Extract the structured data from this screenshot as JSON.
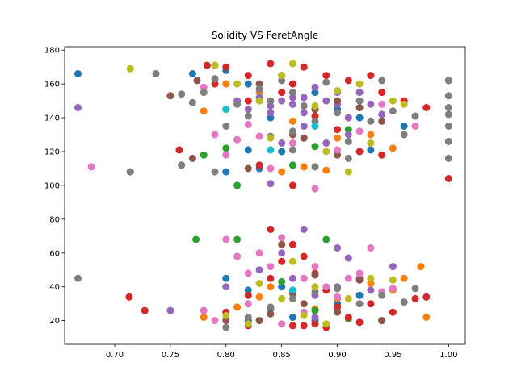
{
  "chart_data": {
    "type": "scatter",
    "title": "Solidity VS FeretAngle",
    "xlabel": "",
    "ylabel": "",
    "xlim": [
      0.655,
      1.015
    ],
    "ylim": [
      6,
      182
    ],
    "xticks": [
      0.7,
      0.75,
      0.8,
      0.85,
      0.9,
      0.95,
      1.0
    ],
    "xtick_labels": [
      "0.70",
      "0.75",
      "0.80",
      "0.85",
      "0.90",
      "0.95",
      "1.00"
    ],
    "yticks": [
      20,
      40,
      60,
      80,
      100,
      120,
      140,
      160,
      180
    ],
    "ytick_labels": [
      "20",
      "40",
      "60",
      "80",
      "100",
      "120",
      "140",
      "160",
      "180"
    ],
    "grid": false,
    "legend": "none",
    "colors": [
      "#1f77b4",
      "#ff7f0e",
      "#2ca02c",
      "#d62728",
      "#9467bd",
      "#8c564b",
      "#e377c2",
      "#7f7f7f",
      "#bcbd22",
      "#17becf"
    ],
    "series": [
      {
        "color": "#1f77b4",
        "points": [
          [
            0.667,
            166
          ],
          [
            0.77,
            166
          ],
          [
            0.79,
            171
          ],
          [
            0.8,
            168
          ],
          [
            0.82,
            160
          ],
          [
            0.83,
            150
          ],
          [
            0.84,
            140
          ],
          [
            0.86,
            148
          ],
          [
            0.88,
            155
          ],
          [
            0.9,
            145
          ],
          [
            0.92,
            140
          ],
          [
            0.96,
            135
          ],
          [
            0.82,
            121
          ],
          [
            0.85,
            120
          ],
          [
            0.93,
            121
          ],
          [
            0.8,
            108
          ],
          [
            0.83,
            110
          ],
          [
            0.8,
            45
          ],
          [
            0.82,
            38
          ],
          [
            0.84,
            27
          ],
          [
            0.86,
            22
          ],
          [
            0.88,
            20
          ],
          [
            0.9,
            30
          ],
          [
            0.92,
            35
          ],
          [
            0.94,
            20
          ],
          [
            0.82,
            20
          ],
          [
            0.85,
            40
          ]
        ]
      },
      {
        "color": "#ff7f0e",
        "points": [
          [
            0.78,
            144
          ],
          [
            0.8,
            160
          ],
          [
            0.83,
            155
          ],
          [
            0.86,
            138
          ],
          [
            0.9,
            128
          ],
          [
            0.93,
            130
          ],
          [
            0.95,
            122
          ],
          [
            0.85,
            108
          ],
          [
            0.87,
            111
          ],
          [
            0.89,
            109
          ],
          [
            0.78,
            22
          ],
          [
            0.81,
            28
          ],
          [
            0.84,
            40
          ],
          [
            0.87,
            45
          ],
          [
            0.9,
            33
          ],
          [
            0.93,
            42
          ],
          [
            0.96,
            45
          ],
          [
            0.975,
            52
          ],
          [
            0.83,
            34
          ],
          [
            0.88,
            27
          ],
          [
            0.95,
            38
          ],
          [
            0.98,
            22
          ]
        ]
      },
      {
        "color": "#2ca02c",
        "points": [
          [
            0.78,
            118
          ],
          [
            0.8,
            122
          ],
          [
            0.81,
            100
          ],
          [
            0.86,
            112
          ],
          [
            0.88,
            123
          ],
          [
            0.91,
            133
          ],
          [
            0.773,
            68
          ],
          [
            0.81,
            68
          ],
          [
            0.89,
            68
          ],
          [
            0.85,
            43
          ],
          [
            0.88,
            26
          ],
          [
            0.91,
            21
          ]
        ]
      },
      {
        "color": "#d62728",
        "points": [
          [
            0.783,
            171
          ],
          [
            0.79,
            160
          ],
          [
            0.8,
            170
          ],
          [
            0.82,
            165
          ],
          [
            0.84,
            172
          ],
          [
            0.86,
            160
          ],
          [
            0.87,
            170
          ],
          [
            0.89,
            165
          ],
          [
            0.91,
            162
          ],
          [
            0.93,
            165
          ],
          [
            0.94,
            155
          ],
          [
            0.96,
            150
          ],
          [
            0.98,
            146
          ],
          [
            0.82,
            150
          ],
          [
            0.85,
            155
          ],
          [
            0.87,
            128
          ],
          [
            0.88,
            141
          ],
          [
            0.9,
            133
          ],
          [
            0.92,
            120
          ],
          [
            0.94,
            118
          ],
          [
            0.758,
            121
          ],
          [
            0.76,
            112
          ],
          [
            0.83,
            112
          ],
          [
            0.86,
            100
          ],
          [
            0.8,
            25
          ],
          [
            0.82,
            35
          ],
          [
            0.84,
            45
          ],
          [
            0.85,
            55
          ],
          [
            0.86,
            65
          ],
          [
            0.87,
            58
          ],
          [
            0.88,
            48
          ],
          [
            0.89,
            38
          ],
          [
            0.9,
            28
          ],
          [
            0.91,
            22
          ],
          [
            0.92,
            19
          ],
          [
            0.93,
            30
          ],
          [
            0.95,
            25
          ],
          [
            0.97,
            33
          ],
          [
            0.98,
            34
          ],
          [
            0.713,
            34
          ],
          [
            0.727,
            26
          ],
          [
            1.0,
            104
          ],
          [
            1.0,
            162
          ],
          [
            0.84,
            74
          ],
          [
            0.82,
            17
          ],
          [
            0.86,
            17
          ],
          [
            0.87,
            17
          ],
          [
            0.88,
            18
          ],
          [
            0.89,
            16
          ]
        ]
      },
      {
        "color": "#9467bd",
        "points": [
          [
            0.667,
            146
          ],
          [
            0.79,
            163
          ],
          [
            0.81,
            150
          ],
          [
            0.82,
            145
          ],
          [
            0.83,
            152
          ],
          [
            0.84,
            147
          ],
          [
            0.85,
            150
          ],
          [
            0.86,
            148
          ],
          [
            0.87,
            152
          ],
          [
            0.88,
            145
          ],
          [
            0.89,
            150
          ],
          [
            0.9,
            148
          ],
          [
            0.91,
            140
          ],
          [
            0.92,
            155
          ],
          [
            0.93,
            148
          ],
          [
            0.94,
            142
          ],
          [
            0.85,
            125
          ],
          [
            0.87,
            135
          ],
          [
            0.89,
            125
          ],
          [
            0.91,
            130
          ],
          [
            0.84,
            101
          ],
          [
            0.75,
            26
          ],
          [
            0.8,
            40
          ],
          [
            0.83,
            50
          ],
          [
            0.85,
            60
          ],
          [
            0.86,
            45
          ],
          [
            0.87,
            74
          ],
          [
            0.88,
            35
          ],
          [
            0.9,
            63
          ],
          [
            0.91,
            57
          ],
          [
            0.92,
            45
          ],
          [
            0.93,
            38
          ],
          [
            0.95,
            52
          ],
          [
            0.88,
            22
          ],
          [
            0.9,
            40
          ],
          [
            0.86,
            152
          ],
          [
            0.88,
            158
          ],
          [
            0.9,
            155
          ],
          [
            0.84,
            143
          ],
          [
            0.87,
            143
          ]
        ]
      },
      {
        "color": "#8c564b",
        "points": [
          [
            0.75,
            153
          ],
          [
            0.774,
            162
          ],
          [
            0.8,
            145
          ],
          [
            0.83,
            160
          ],
          [
            0.85,
            165
          ],
          [
            0.86,
            130
          ],
          [
            0.88,
            145
          ],
          [
            0.9,
            150
          ],
          [
            0.92,
            146
          ],
          [
            0.94,
            138
          ],
          [
            0.87,
            128
          ],
          [
            0.82,
            110
          ],
          [
            0.9,
            118
          ],
          [
            0.77,
            116
          ],
          [
            0.8,
            20
          ],
          [
            0.83,
            20
          ],
          [
            0.85,
            65
          ],
          [
            0.87,
            30
          ],
          [
            0.88,
            47
          ],
          [
            0.9,
            25
          ],
          [
            0.92,
            44
          ],
          [
            0.94,
            20
          ],
          [
            0.86,
            36
          ],
          [
            0.84,
            24
          ]
        ]
      },
      {
        "color": "#e377c2",
        "points": [
          [
            0.679,
            111
          ],
          [
            0.78,
            158
          ],
          [
            0.79,
            130
          ],
          [
            0.8,
            118
          ],
          [
            0.81,
            127
          ],
          [
            0.82,
            136
          ],
          [
            0.83,
            129
          ],
          [
            0.84,
            110
          ],
          [
            0.86,
            125
          ],
          [
            0.88,
            98
          ],
          [
            0.9,
            121
          ],
          [
            0.92,
            132
          ],
          [
            0.94,
            148
          ],
          [
            0.97,
            135
          ],
          [
            0.79,
            20
          ],
          [
            0.8,
            68
          ],
          [
            0.81,
            58
          ],
          [
            0.82,
            48
          ],
          [
            0.83,
            60
          ],
          [
            0.84,
            52
          ],
          [
            0.85,
            69
          ],
          [
            0.86,
            38
          ],
          [
            0.87,
            45
          ],
          [
            0.88,
            52
          ],
          [
            0.89,
            40
          ],
          [
            0.9,
            34
          ],
          [
            0.91,
            45
          ],
          [
            0.92,
            48
          ],
          [
            0.93,
            63
          ],
          [
            0.94,
            37
          ],
          [
            0.95,
            39
          ],
          [
            0.87,
            25
          ],
          [
            0.85,
            18
          ],
          [
            0.82,
            30
          ],
          [
            0.78,
            26
          ]
        ]
      },
      {
        "color": "#7f7f7f",
        "points": [
          [
            0.667,
            45
          ],
          [
            0.714,
            108
          ],
          [
            0.737,
            166
          ],
          [
            0.76,
            154
          ],
          [
            0.77,
            149
          ],
          [
            0.78,
            155
          ],
          [
            0.79,
            163
          ],
          [
            0.8,
            135
          ],
          [
            0.81,
            148
          ],
          [
            0.82,
            141
          ],
          [
            0.83,
            157
          ],
          [
            0.84,
            129
          ],
          [
            0.85,
            162
          ],
          [
            0.86,
            132
          ],
          [
            0.87,
            147
          ],
          [
            0.88,
            138
          ],
          [
            0.89,
            161
          ],
          [
            0.9,
            143
          ],
          [
            0.91,
            126
          ],
          [
            0.92,
            150
          ],
          [
            0.93,
            138
          ],
          [
            0.94,
            162
          ],
          [
            0.95,
            144
          ],
          [
            0.96,
            130
          ],
          [
            0.97,
            141
          ],
          [
            1.0,
            162
          ],
          [
            1.0,
            153
          ],
          [
            1.0,
            146
          ],
          [
            1.0,
            142
          ],
          [
            1.0,
            135
          ],
          [
            1.0,
            126
          ],
          [
            1.0,
            116
          ],
          [
            0.714,
            108
          ],
          [
            0.76,
            112
          ],
          [
            0.79,
            108
          ],
          [
            0.8,
            16
          ],
          [
            0.82,
            22
          ],
          [
            0.84,
            28
          ],
          [
            0.86,
            33
          ],
          [
            0.88,
            37
          ],
          [
            0.9,
            39
          ],
          [
            0.92,
            30
          ],
          [
            0.94,
            35
          ],
          [
            0.96,
            31
          ],
          [
            0.97,
            39
          ],
          [
            0.86,
            121
          ],
          [
            0.88,
            111
          ],
          [
            0.91,
            116
          ],
          [
            0.84,
            150
          ],
          [
            0.86,
            155
          ]
        ]
      },
      {
        "color": "#bcbd22",
        "points": [
          [
            0.714,
            169
          ],
          [
            0.79,
            171
          ],
          [
            0.81,
            160
          ],
          [
            0.83,
            150
          ],
          [
            0.85,
            165
          ],
          [
            0.86,
            172
          ],
          [
            0.88,
            147
          ],
          [
            0.9,
            156
          ],
          [
            0.92,
            160
          ],
          [
            0.95,
            150
          ],
          [
            0.96,
            148
          ],
          [
            0.84,
            128
          ],
          [
            0.89,
            120
          ],
          [
            0.91,
            108
          ],
          [
            0.93,
            125
          ],
          [
            0.82,
            18
          ],
          [
            0.83,
            42
          ],
          [
            0.85,
            33
          ],
          [
            0.86,
            55
          ],
          [
            0.88,
            40
          ],
          [
            0.89,
            18
          ],
          [
            0.91,
            33
          ],
          [
            0.93,
            45
          ],
          [
            0.95,
            44
          ],
          [
            0.8,
            23
          ],
          [
            0.87,
            23
          ]
        ]
      },
      {
        "color": "#17becf",
        "points": [
          [
            0.84,
            121
          ],
          [
            0.8,
            145
          ],
          [
            0.88,
            135
          ],
          [
            0.86,
            38
          ]
        ]
      }
    ]
  }
}
